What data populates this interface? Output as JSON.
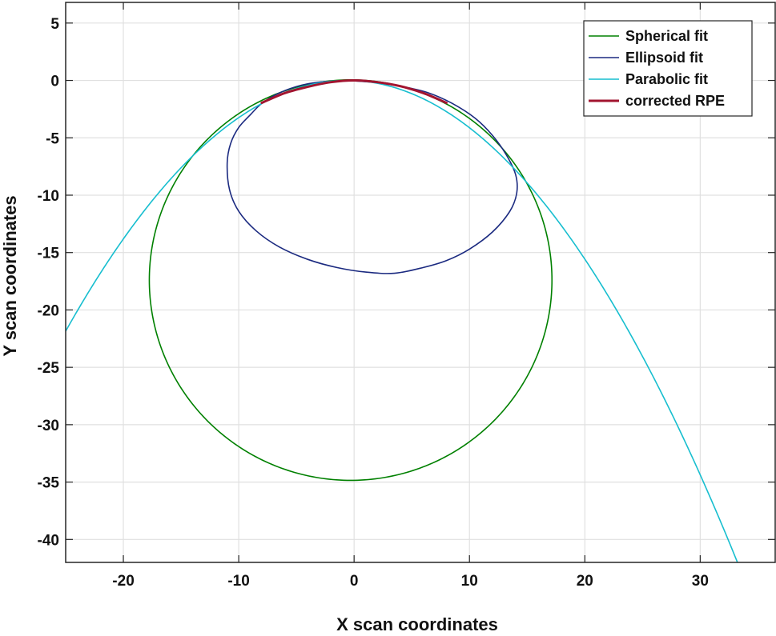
{
  "chart_data": {
    "type": "line",
    "title": "",
    "xlabel": "X scan coordinates",
    "ylabel": "Y scan coordinates",
    "xlim": [
      -25,
      36.5
    ],
    "ylim": [
      -42,
      6.8
    ],
    "xticks": [
      -20,
      -10,
      0,
      10,
      20,
      30
    ],
    "yticks": [
      5,
      0,
      -5,
      -10,
      -15,
      -20,
      -25,
      -30,
      -35,
      -40
    ],
    "xtick_labels": [
      "-20",
      "-10",
      "0",
      "10",
      "20",
      "30"
    ],
    "ytick_labels": [
      "5",
      "0",
      "-5",
      "-10",
      "-15",
      "-20",
      "-25",
      "-30",
      "-35",
      "-40"
    ],
    "grid": true,
    "legend_position": "top-right",
    "series": [
      {
        "name": "Spherical fit",
        "shape": "circle",
        "color": "#008000",
        "center": [
          -0.3,
          -17.4
        ],
        "radius": 17.45
      },
      {
        "name": "Ellipsoid fit",
        "shape": "closed-curve",
        "color": "#1b2a80",
        "x": [
          -0.5,
          2,
          4.5,
          6.5,
          8.5,
          10.5,
          12,
          13.2,
          14,
          14.1,
          13.5,
          12,
          10,
          8,
          6,
          3.5,
          1,
          -1.5,
          -4,
          -6.5,
          -8.5,
          -10,
          -10.8,
          -11,
          -10.7,
          -10,
          -9,
          -8,
          -6.5,
          -4.5,
          -2.5,
          -0.5
        ],
        "y": [
          0,
          -0.2,
          -0.6,
          -1.1,
          -2.0,
          -3.3,
          -4.8,
          -6.5,
          -8.2,
          -9.8,
          -11.4,
          -13.2,
          -14.7,
          -15.7,
          -16.3,
          -16.8,
          -16.7,
          -16.3,
          -15.6,
          -14.5,
          -13.1,
          -11.4,
          -9.5,
          -7.2,
          -5.5,
          -4.1,
          -3.0,
          -2.0,
          -1.1,
          -0.4,
          -0.1,
          0
        ]
      },
      {
        "name": "Parabolic fit",
        "shape": "parabola",
        "color": "#17becf",
        "vertex": [
          -0.6,
          0
        ],
        "coefficient": -0.0367,
        "x_range": [
          -25,
          36.5
        ]
      },
      {
        "name": "corrected RPE",
        "shape": "polyline",
        "color": "#a2142f",
        "x": [
          -8,
          -6,
          -4,
          -2,
          0,
          2,
          4,
          6,
          8
        ],
        "y": [
          -1.95,
          -1.1,
          -0.55,
          -0.15,
          0,
          -0.15,
          -0.5,
          -1.1,
          -1.95
        ]
      }
    ]
  }
}
